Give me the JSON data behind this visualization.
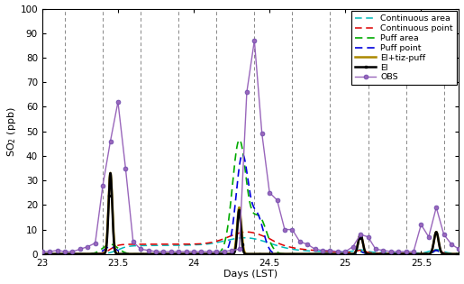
{
  "title": "",
  "xlabel": "Days (LST)",
  "ylabel": "SO$_2$ (ppb)",
  "xlim": [
    23.0,
    25.75
  ],
  "ylim": [
    0,
    100
  ],
  "yticks": [
    0,
    10,
    20,
    30,
    40,
    50,
    60,
    70,
    80,
    90,
    100
  ],
  "xticks": [
    23,
    23.5,
    24,
    24.5,
    25,
    25.5
  ],
  "xtick_labels": [
    "23",
    "23.5",
    "24",
    "24.5",
    "25",
    "25.5"
  ],
  "vlines": [
    23.15,
    23.4,
    23.65,
    23.9,
    24.15,
    24.4,
    24.65,
    24.9,
    25.15,
    25.4,
    25.65
  ],
  "legend_entries": [
    "OBS",
    "EI",
    "EI+tiz-puff",
    "Puff point",
    "Puff area",
    "Continuous point",
    "Continuous area"
  ],
  "obs_color": "#9966bb",
  "ei_color": "#000000",
  "eitiz_color": "#aa8800",
  "puff_point_color": "#0000dd",
  "puff_area_color": "#00aa00",
  "cont_point_color": "#dd0000",
  "cont_area_color": "#00bbbb",
  "background_color": "#ffffff"
}
